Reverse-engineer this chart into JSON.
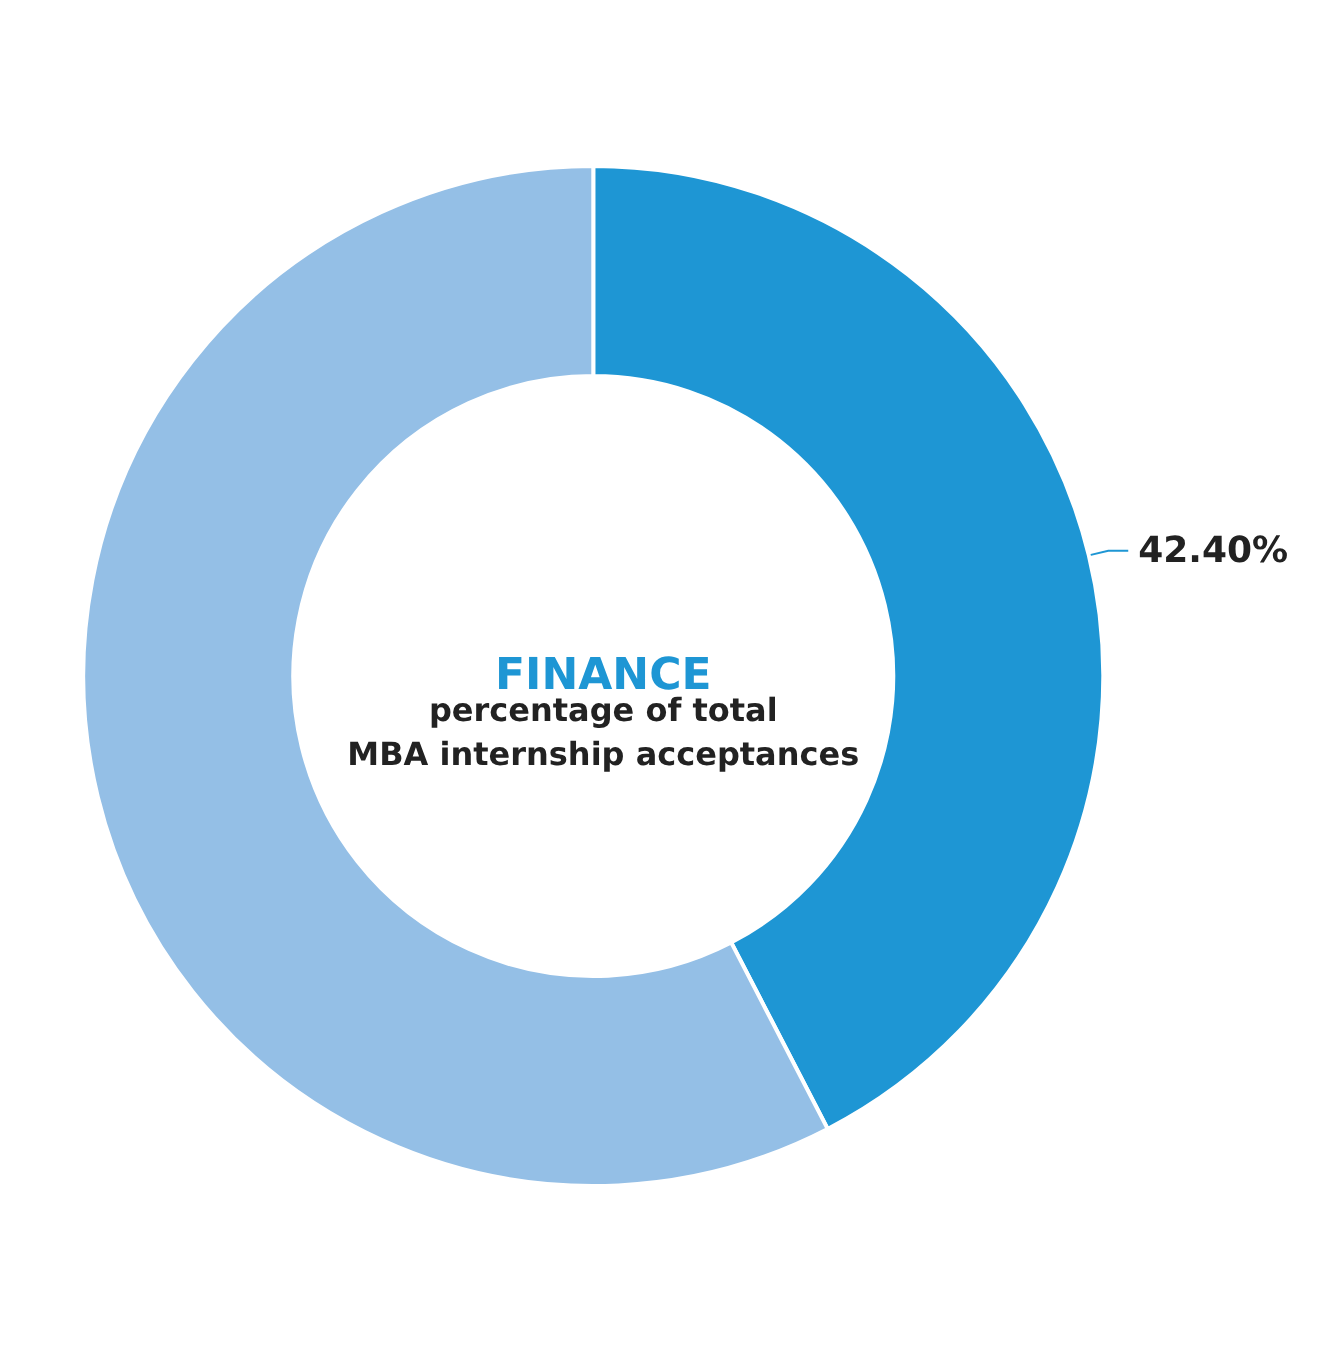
{
  "chart_data": {
    "type": "donut",
    "title": "FINANCE",
    "subtitle": "percentage of total\nMBA internship acceptances",
    "categories": [
      null,
      null
    ],
    "values": [
      42.4,
      57.6
    ],
    "colors": [
      "#1e96d4",
      "#94bfe6"
    ],
    "value_labels": [
      "42.40%",
      null
    ]
  }
}
